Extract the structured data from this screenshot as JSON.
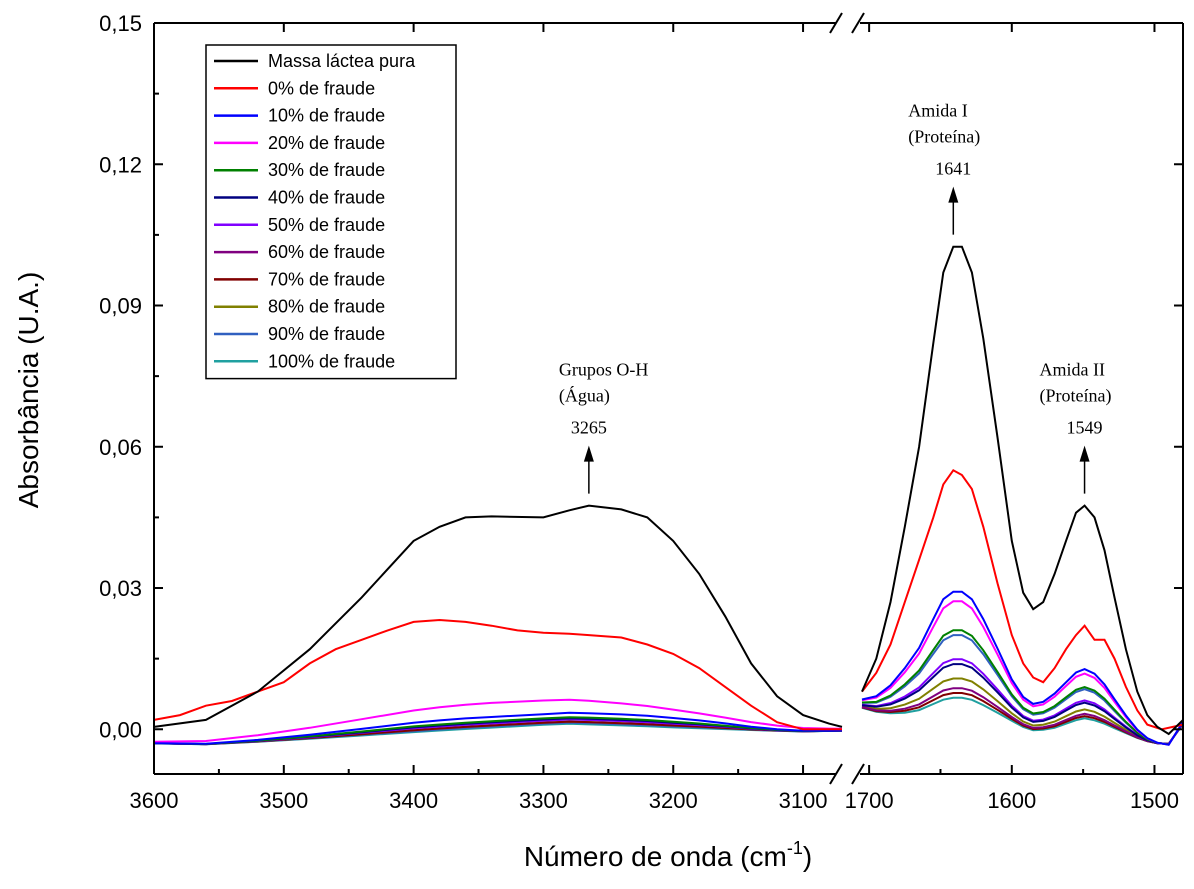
{
  "chart_data": {
    "type": "line",
    "ylabel": "Absorbância (U.A.)",
    "xlabel": "Número de onda (cm",
    "xlabel_sup": "-1",
    "xlabel_suffix": ")",
    "ylim": [
      -0.0095,
      0.15
    ],
    "y_ticks": [
      "0,00",
      "0,03",
      "0,06",
      "0,09",
      "0,12",
      "0,15"
    ],
    "y_tick_values": [
      0.0,
      0.03,
      0.06,
      0.09,
      0.12,
      0.15
    ],
    "x_break": true,
    "x_segments": [
      {
        "xlim": [
          3600,
          3070
        ],
        "ticks": [
          3600,
          3500,
          3400,
          3300,
          3200,
          3100
        ],
        "tick_labels": [
          "3600",
          "3500",
          "3400",
          "3300",
          "3200",
          "3100"
        ]
      },
      {
        "xlim": [
          1705,
          1480
        ],
        "ticks": [
          1700,
          1600,
          1500
        ],
        "tick_labels": [
          "1700",
          "1600",
          "1500"
        ]
      }
    ],
    "legend_position": "top-left",
    "series": [
      {
        "name": "Massa láctea pura",
        "color": "#000000",
        "seg1": [
          [
            3600,
            0.0005
          ],
          [
            3560,
            0.002
          ],
          [
            3520,
            0.008
          ],
          [
            3480,
            0.017
          ],
          [
            3440,
            0.028
          ],
          [
            3400,
            0.04
          ],
          [
            3380,
            0.043
          ],
          [
            3360,
            0.045
          ],
          [
            3340,
            0.0452
          ],
          [
            3300,
            0.045
          ],
          [
            3280,
            0.0465
          ],
          [
            3265,
            0.0475
          ],
          [
            3240,
            0.0467
          ],
          [
            3220,
            0.045
          ],
          [
            3200,
            0.04
          ],
          [
            3180,
            0.033
          ],
          [
            3160,
            0.024
          ],
          [
            3140,
            0.014
          ],
          [
            3120,
            0.007
          ],
          [
            3100,
            0.003
          ],
          [
            3080,
            0.0012
          ],
          [
            3070,
            0.0005
          ]
        ],
        "seg2": [
          [
            1705,
            0.008
          ],
          [
            1695,
            0.015
          ],
          [
            1685,
            0.027
          ],
          [
            1675,
            0.043
          ],
          [
            1665,
            0.06
          ],
          [
            1655,
            0.082
          ],
          [
            1648,
            0.097
          ],
          [
            1641,
            0.1025
          ],
          [
            1635,
            0.1025
          ],
          [
            1628,
            0.097
          ],
          [
            1620,
            0.083
          ],
          [
            1610,
            0.062
          ],
          [
            1600,
            0.04
          ],
          [
            1592,
            0.029
          ],
          [
            1585,
            0.0255
          ],
          [
            1578,
            0.027
          ],
          [
            1570,
            0.033
          ],
          [
            1562,
            0.04
          ],
          [
            1555,
            0.046
          ],
          [
            1549,
            0.0475
          ],
          [
            1542,
            0.045
          ],
          [
            1535,
            0.038
          ],
          [
            1528,
            0.028
          ],
          [
            1520,
            0.017
          ],
          [
            1512,
            0.008
          ],
          [
            1505,
            0.003
          ],
          [
            1498,
            0.0005
          ],
          [
            1490,
            -0.001
          ],
          [
            1480,
            0.002
          ]
        ]
      },
      {
        "name": "0% de fraude",
        "color": "#ff0000",
        "seg1": [
          [
            3600,
            0.002
          ],
          [
            3580,
            0.003
          ],
          [
            3560,
            0.005
          ],
          [
            3540,
            0.006
          ],
          [
            3520,
            0.008
          ],
          [
            3500,
            0.01
          ],
          [
            3480,
            0.014
          ],
          [
            3460,
            0.017
          ],
          [
            3440,
            0.019
          ],
          [
            3420,
            0.021
          ],
          [
            3400,
            0.0228
          ],
          [
            3380,
            0.0232
          ],
          [
            3360,
            0.0228
          ],
          [
            3340,
            0.022
          ],
          [
            3320,
            0.021
          ],
          [
            3300,
            0.0205
          ],
          [
            3280,
            0.0203
          ],
          [
            3265,
            0.02
          ],
          [
            3240,
            0.0195
          ],
          [
            3220,
            0.018
          ],
          [
            3200,
            0.016
          ],
          [
            3180,
            0.013
          ],
          [
            3160,
            0.009
          ],
          [
            3140,
            0.005
          ],
          [
            3120,
            0.0015
          ],
          [
            3100,
            0.0
          ],
          [
            3070,
            0.0
          ]
        ],
        "seg2": [
          [
            1705,
            0.008
          ],
          [
            1695,
            0.012
          ],
          [
            1685,
            0.018
          ],
          [
            1675,
            0.027
          ],
          [
            1665,
            0.036
          ],
          [
            1655,
            0.045
          ],
          [
            1648,
            0.052
          ],
          [
            1641,
            0.055
          ],
          [
            1635,
            0.054
          ],
          [
            1628,
            0.051
          ],
          [
            1620,
            0.043
          ],
          [
            1610,
            0.031
          ],
          [
            1600,
            0.02
          ],
          [
            1592,
            0.014
          ],
          [
            1585,
            0.011
          ],
          [
            1578,
            0.01
          ],
          [
            1570,
            0.013
          ],
          [
            1562,
            0.017
          ],
          [
            1555,
            0.02
          ],
          [
            1549,
            0.022
          ],
          [
            1542,
            0.019
          ],
          [
            1535,
            0.019
          ],
          [
            1528,
            0.015
          ],
          [
            1520,
            0.009
          ],
          [
            1512,
            0.004
          ],
          [
            1505,
            0.001
          ],
          [
            1495,
            0.0
          ],
          [
            1480,
            0.001
          ]
        ]
      },
      {
        "name": "10% de fraude",
        "color": "#0000ff",
        "k1": 0.06,
        "k2": 0.29,
        "c1": 0.0,
        "c2": 0.0
      },
      {
        "name": "20% de fraude",
        "color": "#ff00ff",
        "k1": 0.06,
        "k2": 0.27,
        "c1": 0.003,
        "c2": 0.0
      },
      {
        "name": "30% de fraude",
        "color": "#008000",
        "k1": 0.04,
        "k2": 0.21,
        "c1": 0.0,
        "c2": 0.0
      },
      {
        "name": "40% de fraude",
        "color": "#000080",
        "k1": 0.035,
        "k2": 0.14,
        "c1": 0.0,
        "c2": 0.0
      },
      {
        "name": "50% de fraude",
        "color": "#8000ff",
        "k1": 0.03,
        "k2": 0.15,
        "c1": 0.0,
        "c2": 0.0
      },
      {
        "name": "60% de fraude",
        "color": "#800080",
        "k1": 0.03,
        "k2": 0.09,
        "c1": 0.0,
        "c2": 0.0
      },
      {
        "name": "70% de fraude",
        "color": "#800000",
        "k1": 0.02,
        "k2": 0.08,
        "c1": 0.0,
        "c2": 0.0
      },
      {
        "name": "80% de fraude",
        "color": "#808000",
        "k1": 0.02,
        "k2": 0.11,
        "c1": 0.0,
        "c2": 0.0
      },
      {
        "name": "90% de fraude",
        "color": "#3060c0",
        "k1": 0.015,
        "k2": 0.2,
        "c1": 0.0,
        "c2": 0.0
      },
      {
        "name": "100% de fraude",
        "color": "#20a0a0",
        "k1": 0.01,
        "k2": 0.07,
        "c1": 0.0,
        "c2": 0.0
      }
    ],
    "annotations": [
      {
        "lines": [
          "Grupos O-H",
          "(Água)"
        ],
        "value": "3265",
        "x": 3265,
        "arrow_y": 0.0475,
        "segment": 1
      },
      {
        "lines": [
          "Amida I",
          "(Proteína)"
        ],
        "value": "1641",
        "x": 1641,
        "arrow_y": 0.1025,
        "segment": 2
      },
      {
        "lines": [
          "Amida II",
          "(Proteína)"
        ],
        "value": "1549",
        "x": 1549,
        "arrow_y": 0.0475,
        "segment": 2
      }
    ]
  }
}
